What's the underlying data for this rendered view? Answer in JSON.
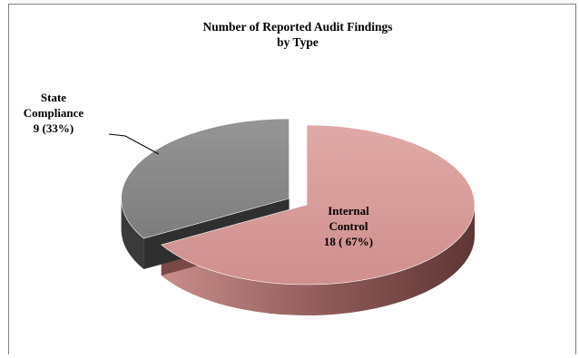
{
  "chart_data": {
    "type": "pie",
    "title_lines": [
      "Number of Reported Audit Findings",
      "by Type"
    ],
    "slices": [
      {
        "name_lines": [
          "Internal",
          "Control"
        ],
        "value": 18,
        "value_label": "18 ( 67%)",
        "percent": 67,
        "color_top": "#d89a98",
        "color_side": "#8a5452",
        "exploded": false
      },
      {
        "name_lines": [
          "State",
          "Compliance"
        ],
        "value": 9,
        "value_label": "9 (33%)",
        "percent": 33,
        "color_top": "#8a8a8a",
        "color_side": "#3a3a3a",
        "exploded": true
      }
    ],
    "style": "3d-exploded",
    "legend": "none"
  }
}
